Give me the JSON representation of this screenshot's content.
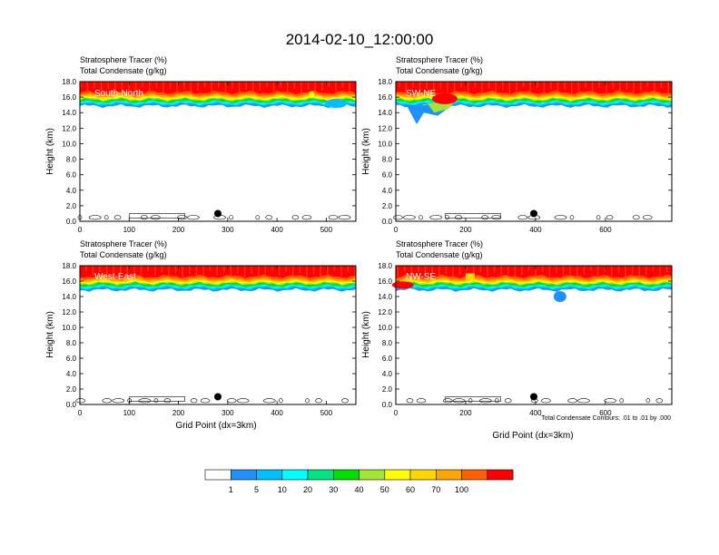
{
  "title": "2014-02-10_12:00:00",
  "panel_header": {
    "line1": "Stratosphere Tracer   (%)",
    "line2": "Total Condensate   (g/kg)"
  },
  "ylabel": "Height (km)",
  "xlabel": "Grid Point (dx=3km)",
  "contour_note": "Total Condensate Contours: .01 to .01 by .000",
  "colorbar": {
    "colors": [
      "#ffffff",
      "#1e90ff",
      "#00bfff",
      "#00ffff",
      "#00e57f",
      "#00e000",
      "#a0e632",
      "#ffff00",
      "#ffd700",
      "#ffa500",
      "#ff5f00",
      "#ff0000"
    ],
    "labels": [
      "1",
      "5",
      "10",
      "20",
      "30",
      "40",
      "50",
      "60",
      "70",
      "100"
    ]
  },
  "chart_data": [
    {
      "type": "contour",
      "name": "South-North",
      "label": "South-North",
      "title": "Stratosphere Tracer (%) / Total Condensate (g/kg)",
      "xlim": [
        0,
        560
      ],
      "ylim": [
        0,
        18
      ],
      "xticks": [
        "0",
        "100",
        "200",
        "300",
        "400",
        "500"
      ],
      "xtick_values": [
        0,
        100,
        200,
        300,
        400,
        500
      ],
      "yticks": [
        "0.0",
        "2.0",
        "4.0",
        "6.0",
        "8.0",
        "10.0",
        "12.0",
        "14.0",
        "16.0",
        "18.0"
      ],
      "marker": {
        "x": 280,
        "y": 1.0
      }
    },
    {
      "type": "contour",
      "name": "SW-NE",
      "label": "SW-NE",
      "title": "Stratosphere Tracer (%) / Total Condensate (g/kg)",
      "xlim": [
        0,
        790
      ],
      "ylim": [
        0,
        18
      ],
      "xticks": [
        "0",
        "200",
        "400",
        "600"
      ],
      "xtick_values": [
        0,
        200,
        400,
        600
      ],
      "yticks": [
        "0.0",
        "2.0",
        "4.0",
        "6.0",
        "8.0",
        "10.0",
        "12.0",
        "14.0",
        "16.0",
        "18.0"
      ],
      "marker": {
        "x": 395,
        "y": 1.0
      }
    },
    {
      "type": "contour",
      "name": "West-East",
      "label": "West-East",
      "title": "Stratosphere Tracer (%) / Total Condensate (g/kg)",
      "xlim": [
        0,
        560
      ],
      "ylim": [
        0,
        18
      ],
      "xticks": [
        "0",
        "100",
        "200",
        "300",
        "400",
        "500"
      ],
      "xtick_values": [
        0,
        100,
        200,
        300,
        400,
        500
      ],
      "yticks": [
        "0.0",
        "2.0",
        "4.0",
        "6.0",
        "8.0",
        "10.0",
        "12.0",
        "14.0",
        "16.0",
        "18.0"
      ],
      "marker": {
        "x": 280,
        "y": 1.0
      }
    },
    {
      "type": "contour",
      "name": "NW-SE",
      "label": "NW-SE",
      "title": "Stratosphere Tracer (%) / Total Condensate (g/kg)",
      "xlim": [
        0,
        790
      ],
      "ylim": [
        0,
        18
      ],
      "xticks": [
        "0",
        "200",
        "400",
        "600"
      ],
      "xtick_values": [
        0,
        200,
        400,
        600
      ],
      "yticks": [
        "0.0",
        "2.0",
        "4.0",
        "6.0",
        "8.0",
        "10.0",
        "12.0",
        "14.0",
        "16.0",
        "18.0"
      ],
      "marker": {
        "x": 395,
        "y": 1.0
      }
    }
  ]
}
